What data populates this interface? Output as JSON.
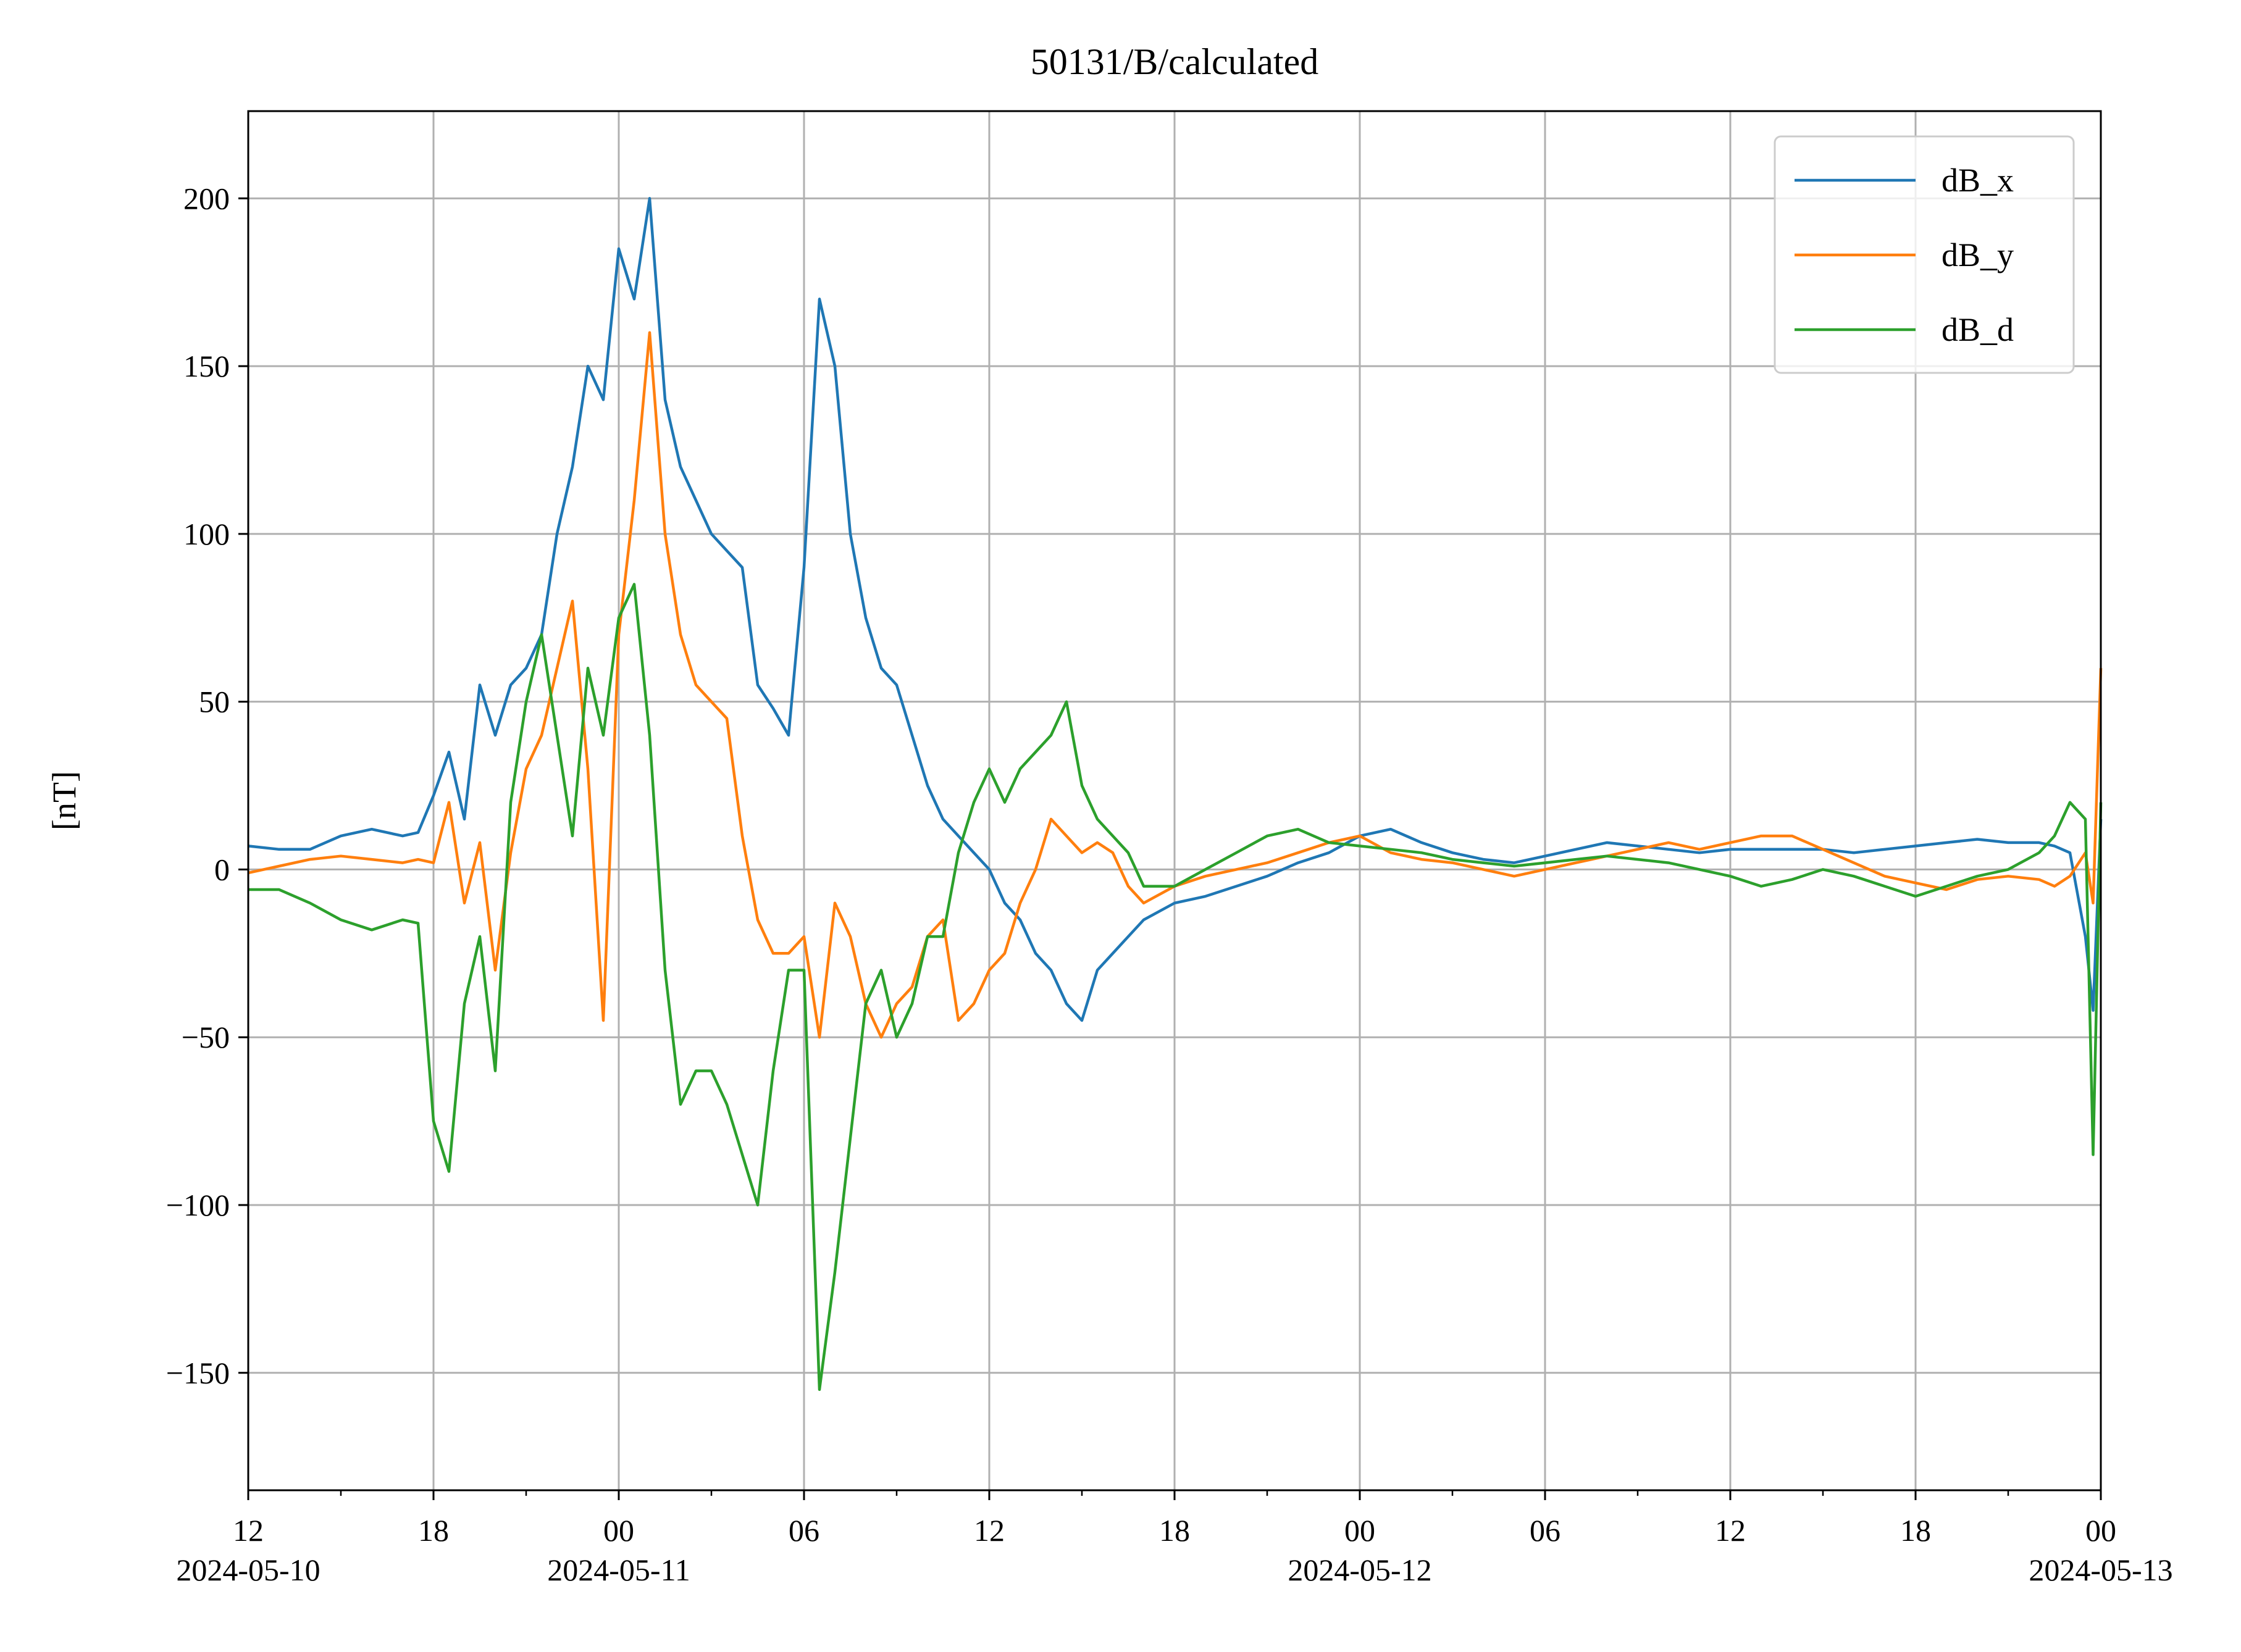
{
  "chart_data": {
    "type": "line",
    "title": "50131/B/calculated",
    "xlabel": "",
    "ylabel": "[nT]",
    "xlim": [
      "2024-05-10 12:00",
      "2024-05-13 00:00"
    ],
    "ylim": [
      -185,
      226
    ],
    "grid": true,
    "legend_position": "top-right",
    "x_ticks": [
      {
        "value": "2024-05-10 12:00",
        "label": "12",
        "date_label": "2024-05-10"
      },
      {
        "value": "2024-05-10 18:00",
        "label": "18",
        "date_label": ""
      },
      {
        "value": "2024-05-11 00:00",
        "label": "00",
        "date_label": "2024-05-11"
      },
      {
        "value": "2024-05-11 06:00",
        "label": "06",
        "date_label": ""
      },
      {
        "value": "2024-05-11 12:00",
        "label": "12",
        "date_label": ""
      },
      {
        "value": "2024-05-11 18:00",
        "label": "18",
        "date_label": ""
      },
      {
        "value": "2024-05-12 00:00",
        "label": "00",
        "date_label": "2024-05-12"
      },
      {
        "value": "2024-05-12 06:00",
        "label": "06",
        "date_label": ""
      },
      {
        "value": "2024-05-12 12:00",
        "label": "12",
        "date_label": ""
      },
      {
        "value": "2024-05-12 18:00",
        "label": "18",
        "date_label": ""
      },
      {
        "value": "2024-05-13 00:00",
        "label": "00",
        "date_label": "2024-05-13"
      }
    ],
    "y_ticks": [
      {
        "value": 200,
        "label": "200"
      },
      {
        "value": 150,
        "label": "150"
      },
      {
        "value": 100,
        "label": "100"
      },
      {
        "value": 50,
        "label": "50"
      },
      {
        "value": 0,
        "label": "0"
      },
      {
        "value": -50,
        "label": "−50"
      },
      {
        "value": -100,
        "label": "−100"
      },
      {
        "value": -150,
        "label": "−150"
      }
    ],
    "x": [
      "2024-05-10 12:00",
      "2024-05-10 13:00",
      "2024-05-10 14:00",
      "2024-05-10 15:00",
      "2024-05-10 16:00",
      "2024-05-10 17:00",
      "2024-05-10 17:30",
      "2024-05-10 18:00",
      "2024-05-10 18:30",
      "2024-05-10 19:00",
      "2024-05-10 19:30",
      "2024-05-10 20:00",
      "2024-05-10 20:30",
      "2024-05-10 21:00",
      "2024-05-10 21:30",
      "2024-05-10 22:00",
      "2024-05-10 22:30",
      "2024-05-10 23:00",
      "2024-05-10 23:30",
      "2024-05-11 00:00",
      "2024-05-11 00:30",
      "2024-05-11 01:00",
      "2024-05-11 01:30",
      "2024-05-11 02:00",
      "2024-05-11 02:30",
      "2024-05-11 03:00",
      "2024-05-11 03:30",
      "2024-05-11 04:00",
      "2024-05-11 04:30",
      "2024-05-11 05:00",
      "2024-05-11 05:30",
      "2024-05-11 06:00",
      "2024-05-11 06:30",
      "2024-05-11 07:00",
      "2024-05-11 07:30",
      "2024-05-11 08:00",
      "2024-05-11 08:30",
      "2024-05-11 09:00",
      "2024-05-11 09:30",
      "2024-05-11 10:00",
      "2024-05-11 10:30",
      "2024-05-11 11:00",
      "2024-05-11 11:30",
      "2024-05-11 12:00",
      "2024-05-11 12:30",
      "2024-05-11 13:00",
      "2024-05-11 13:30",
      "2024-05-11 14:00",
      "2024-05-11 14:30",
      "2024-05-11 15:00",
      "2024-05-11 15:30",
      "2024-05-11 16:00",
      "2024-05-11 16:30",
      "2024-05-11 17:00",
      "2024-05-11 18:00",
      "2024-05-11 19:00",
      "2024-05-11 20:00",
      "2024-05-11 21:00",
      "2024-05-11 22:00",
      "2024-05-11 23:00",
      "2024-05-12 00:00",
      "2024-05-12 01:00",
      "2024-05-12 02:00",
      "2024-05-12 03:00",
      "2024-05-12 04:00",
      "2024-05-12 05:00",
      "2024-05-12 06:00",
      "2024-05-12 07:00",
      "2024-05-12 08:00",
      "2024-05-12 09:00",
      "2024-05-12 10:00",
      "2024-05-12 11:00",
      "2024-05-12 12:00",
      "2024-05-12 13:00",
      "2024-05-12 14:00",
      "2024-05-12 15:00",
      "2024-05-12 16:00",
      "2024-05-12 17:00",
      "2024-05-12 18:00",
      "2024-05-12 19:00",
      "2024-05-12 20:00",
      "2024-05-12 21:00",
      "2024-05-12 22:00",
      "2024-05-12 22:30",
      "2024-05-12 23:00",
      "2024-05-12 23:30",
      "2024-05-12 23:45",
      "2024-05-13 00:00"
    ],
    "series": [
      {
        "name": "dB_x",
        "color": "#1f77b4",
        "values": [
          7,
          6,
          6,
          10,
          12,
          10,
          11,
          22,
          35,
          15,
          55,
          40,
          55,
          60,
          70,
          100,
          120,
          150,
          140,
          185,
          170,
          200,
          140,
          120,
          110,
          100,
          95,
          90,
          55,
          48,
          40,
          90,
          170,
          150,
          100,
          75,
          60,
          55,
          40,
          25,
          15,
          10,
          5,
          0,
          -10,
          -15,
          -25,
          -30,
          -40,
          -45,
          -30,
          -25,
          -20,
          -15,
          -10,
          -8,
          -5,
          -2,
          2,
          5,
          10,
          12,
          8,
          5,
          3,
          2,
          4,
          6,
          8,
          7,
          6,
          5,
          6,
          6,
          6,
          6,
          5,
          6,
          7,
          8,
          9,
          8,
          8,
          7,
          5,
          -20,
          -42,
          15
        ]
      },
      {
        "name": "dB_y",
        "color": "#ff7f0e",
        "values": [
          -1,
          1,
          3,
          4,
          3,
          2,
          3,
          2,
          20,
          -10,
          8,
          -30,
          5,
          30,
          40,
          60,
          80,
          30,
          -45,
          70,
          110,
          160,
          100,
          70,
          55,
          50,
          45,
          10,
          -15,
          -25,
          -25,
          -20,
          -50,
          -10,
          -20,
          -40,
          -50,
          -40,
          -35,
          -20,
          -15,
          -45,
          -40,
          -30,
          -25,
          -10,
          0,
          15,
          10,
          5,
          8,
          5,
          -5,
          -10,
          -5,
          -2,
          0,
          2,
          5,
          8,
          10,
          5,
          3,
          2,
          0,
          -2,
          0,
          2,
          4,
          6,
          8,
          6,
          8,
          10,
          10,
          6,
          2,
          -2,
          -4,
          -6,
          -3,
          -2,
          -3,
          -5,
          -2,
          5,
          -10,
          60
        ]
      },
      {
        "name": "dB_d",
        "color": "#2ca02c",
        "values": [
          -6,
          -6,
          -10,
          -15,
          -18,
          -15,
          -16,
          -75,
          -90,
          -40,
          -20,
          -60,
          20,
          50,
          70,
          40,
          10,
          60,
          40,
          75,
          85,
          40,
          -30,
          -70,
          -60,
          -60,
          -70,
          -85,
          -100,
          -60,
          -30,
          -30,
          -155,
          -120,
          -80,
          -40,
          -30,
          -50,
          -40,
          -20,
          -20,
          5,
          20,
          30,
          20,
          30,
          35,
          40,
          50,
          25,
          15,
          10,
          5,
          -5,
          -5,
          0,
          5,
          10,
          12,
          8,
          7,
          6,
          5,
          3,
          2,
          1,
          2,
          3,
          4,
          3,
          2,
          0,
          -2,
          -5,
          -3,
          0,
          -2,
          -5,
          -8,
          -5,
          -2,
          0,
          5,
          10,
          20,
          15,
          -85,
          20
        ]
      }
    ]
  }
}
